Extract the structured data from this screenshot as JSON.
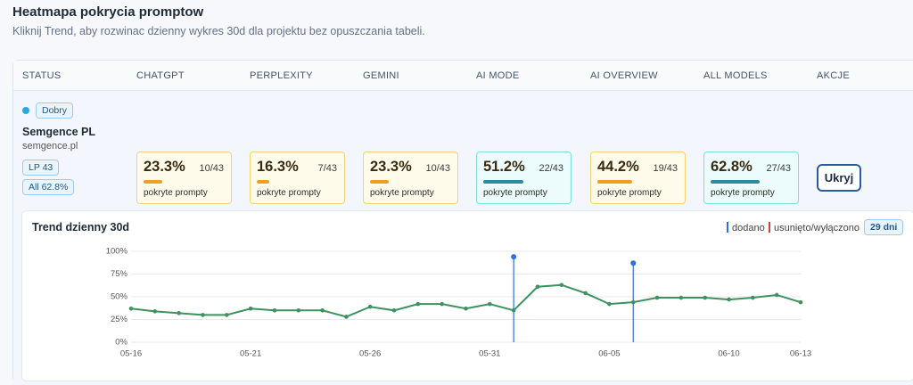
{
  "header": {
    "title": "Heatmapa pokrycia promptow",
    "subtitle": "Kliknij Trend, aby rozwinac dzienny wykres 30d dla projektu bez opuszczania tabeli."
  },
  "table": {
    "columns": [
      "STATUS",
      "CHATGPT",
      "PERPLEXITY",
      "GEMINI",
      "AI MODE",
      "AI OVERVIEW",
      "ALL MODELS",
      "AKCJE"
    ],
    "rows": [
      {
        "status": "Dobry",
        "status_color": "#29a9e1",
        "name": "Semgence PL",
        "domain": "semgence.pl",
        "badges": [
          "LP 43",
          "All 62.8%"
        ],
        "cells": [
          {
            "value": 23.3,
            "label": "23.3%",
            "count": "10/43",
            "caption": "pokryte prompty",
            "color": "#f0a020",
            "background": "#fffbea",
            "border": "#f2d27a"
          },
          {
            "value": 16.3,
            "label": "16.3%",
            "count": "7/43",
            "caption": "pokryte prompty",
            "color": "#f0a020",
            "background": "#fffbea",
            "border": "#f2d27a"
          },
          {
            "value": 23.3,
            "label": "23.3%",
            "count": "10/43",
            "caption": "pokryte prompty",
            "color": "#f0a020",
            "background": "#fffbea",
            "border": "#f2d27a"
          },
          {
            "value": 51.2,
            "label": "51.2%",
            "count": "22/43",
            "caption": "pokryte prompty",
            "color": "#2b8a9e",
            "background": "#ecfbfb",
            "border": "#7fdede"
          },
          {
            "value": 44.2,
            "label": "44.2%",
            "count": "19/43",
            "caption": "pokryte prompty",
            "color": "#f0a020",
            "background": "#fffbea",
            "border": "#f2d27a"
          },
          {
            "value": 62.8,
            "label": "62.8%",
            "count": "27/43",
            "caption": "pokryte prompty",
            "color": "#2b8a9e",
            "background": "#ecfbfb",
            "border": "#7fdede"
          }
        ],
        "action": "Ukryj"
      }
    ]
  },
  "chart_data": {
    "type": "line",
    "title": "Trend dzienny 30d",
    "badge": "29 dni",
    "categories": [
      "05-16",
      null,
      null,
      null,
      null,
      "05-21",
      null,
      null,
      null,
      null,
      "05-26",
      null,
      null,
      null,
      null,
      "05-31",
      null,
      null,
      null,
      null,
      "06-05",
      null,
      null,
      null,
      null,
      "06-10",
      null,
      null,
      "06-13"
    ],
    "series": [
      {
        "color": "#3f9160",
        "values": [
          37,
          34,
          32,
          30,
          30,
          37,
          35,
          35,
          35,
          28,
          39,
          35,
          42,
          42,
          37,
          42,
          35,
          61,
          63,
          54,
          42,
          44,
          49,
          49,
          49,
          47,
          49,
          52,
          44
        ]
      }
    ],
    "markers": [
      {
        "name": "dodano",
        "color": "#2f6fe0",
        "values": [
          null,
          null,
          null,
          null,
          null,
          null,
          null,
          null,
          null,
          null,
          null,
          null,
          null,
          null,
          null,
          null,
          94,
          null,
          null,
          null,
          null,
          87,
          null,
          null,
          null,
          null,
          null,
          null,
          null
        ]
      },
      {
        "name": "usunięto/wyłączono",
        "color": "#e03a3a",
        "values": [
          null,
          null,
          null,
          null,
          null,
          null,
          null,
          null,
          null,
          null,
          null,
          null,
          null,
          null,
          null,
          null,
          null,
          null,
          null,
          null,
          null,
          null,
          null,
          null,
          null,
          null,
          null,
          null,
          null
        ]
      }
    ],
    "ylim": [
      0,
      100
    ],
    "yticks": [
      {
        "value": 0,
        "label": "0%"
      },
      {
        "value": 25,
        "label": "25%"
      },
      {
        "value": 50,
        "label": "50%"
      },
      {
        "value": 75,
        "label": "75%"
      },
      {
        "value": 100,
        "label": "100%"
      }
    ],
    "grid": true
  }
}
